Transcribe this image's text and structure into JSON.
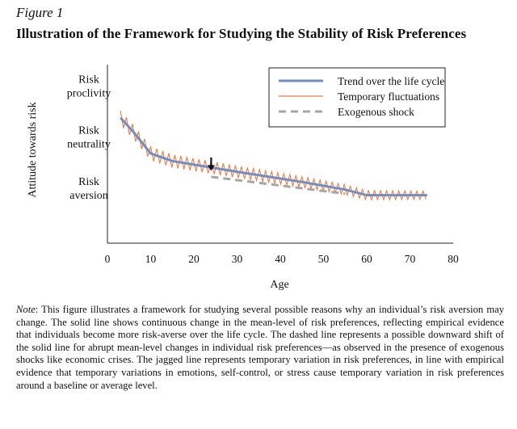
{
  "figure": {
    "label": "Figure 1",
    "title": "Illustration of the Framework for Studying the Stability of Risk Preferences"
  },
  "note": {
    "lead": "Note",
    "text": ": This figure illustrates a framework for studying several possible reasons why an individual’s risk aversion may change. The solid line shows continuous change in the mean-level of risk preferences, reflecting empirical evidence that individuals become more risk-averse over the life cycle. The dashed line represents a possible downward shift of the solid line for abrupt mean-level changes in individual risk preferences—as observed in the presence of exogenous shocks like economic crises. The jagged line represents temporary variation in risk preferences, in line with empirical evidence that temporary variations in emotions, self-control, or stress cause temporary variation in risk preferences around a baseline or average level."
  },
  "colors": {
    "trend": "#6f8fc4",
    "fluctuation": "#ef7b3e",
    "shock": "#a6a6a6",
    "axis": "#222222"
  },
  "chart_data": {
    "type": "line",
    "xlabel": "Age",
    "ylabel": "Attitude towards risk",
    "xlim": [
      0,
      80
    ],
    "ylim": [
      0,
      3.5
    ],
    "x_ticks": [
      0,
      10,
      20,
      30,
      40,
      50,
      60,
      70,
      80
    ],
    "y_ticks": [
      {
        "value": 3,
        "lines": [
          "Risk",
          "proclivity"
        ]
      },
      {
        "value": 2,
        "lines": [
          "Risk",
          "neutrality"
        ]
      },
      {
        "value": 1,
        "lines": [
          "Risk",
          "aversion"
        ]
      }
    ],
    "legend_position": "top-right",
    "grid": false,
    "series": [
      {
        "name": "Trend over the life cycle",
        "style": "solid",
        "x": [
          3,
          6,
          10,
          15,
          30,
          45,
          55,
          60,
          74
        ],
        "y": [
          2.46,
          2.18,
          1.76,
          1.61,
          1.4,
          1.2,
          1.05,
          0.94,
          0.94
        ]
      },
      {
        "name": "Temporary fluctuations",
        "style": "jagged",
        "x_start": 3,
        "x_end": 74,
        "period": 1.4,
        "amplitude_start": 0.14,
        "amplitude_end": 0.08
      },
      {
        "name": "Exogenous shock",
        "style": "dashed",
        "x": [
          24,
          55
        ],
        "y": [
          1.3,
          0.97
        ]
      }
    ],
    "annotations": [
      {
        "type": "arrow-down",
        "x": 24,
        "y_from": 1.68,
        "y_to": 1.42
      }
    ]
  }
}
